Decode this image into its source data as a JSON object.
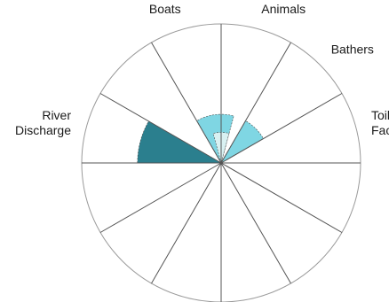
{
  "chart_data": {
    "type": "polar-area",
    "sector_count": 12,
    "rmax": 100,
    "grid": true,
    "colors": {
      "outline": "#9a9a9a",
      "spoke": "#555555",
      "dark_teal": "#2b7f8e",
      "light_cyan": "#7fd6e3",
      "pale_cyan": "#d9f1f2"
    },
    "categories": [
      {
        "lines": [
          "Animals"
        ],
        "sector": 0
      },
      {
        "lines": [
          "Bathers"
        ],
        "sector": 1
      },
      {
        "lines": [
          "Toilet",
          "Facilities"
        ],
        "sector": 2
      },
      {
        "lines": [
          "Boats"
        ],
        "sector": 11
      },
      {
        "lines": [
          "River",
          "Discharge"
        ],
        "sector": 9
      }
    ],
    "wedges": [
      {
        "start_sector": 9,
        "span": 1,
        "value": 60,
        "color": "dark_teal"
      },
      {
        "start_sector": 0,
        "span": 0.5,
        "value": 35,
        "color": "light_cyan"
      },
      {
        "start_sector": 1,
        "span": 1,
        "value": 35,
        "color": "light_cyan"
      },
      {
        "start_sector": 11,
        "span": 1,
        "value": 35,
        "color": "light_cyan"
      },
      {
        "start_sector": 11.5,
        "span": 1,
        "value": 22,
        "color": "pale_cyan"
      }
    ]
  }
}
